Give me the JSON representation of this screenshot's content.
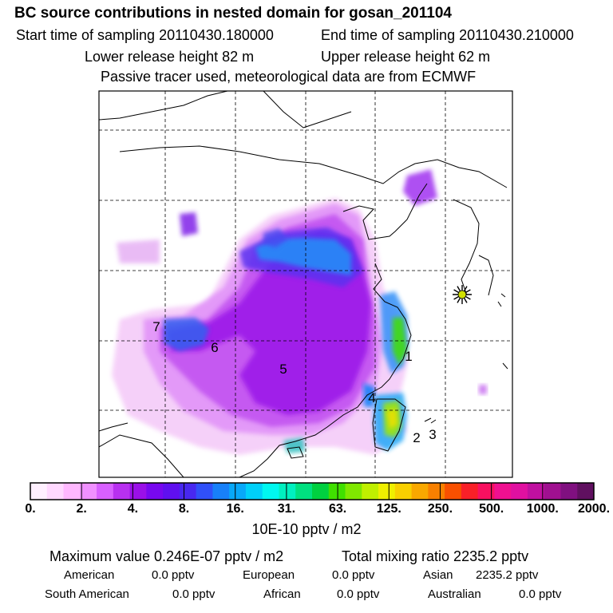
{
  "header": {
    "title": "BC  source contributions in nested domain for gosan_201104",
    "start": "Start time of sampling 20110430.180000",
    "end": "End time of sampling 20110430.210000",
    "lower": "Lower release height   82 m",
    "upper": "Upper release height   62 m",
    "note": "Passive tracer used, meteorological data are from ECMWF"
  },
  "chart_data": {
    "type": "heatmap",
    "region_labels": [
      "1",
      "2",
      "3",
      "4",
      "5",
      "6",
      "7"
    ],
    "colorbar": {
      "tick_labels": [
        "0.",
        "2.",
        "4.",
        "8.",
        "16.",
        "31.",
        "63.",
        "125.",
        "250.",
        "500.",
        "1000.",
        "2000."
      ],
      "colors": [
        "#fff0ff",
        "#ffd8ff",
        "#ffb8ff",
        "#f090ff",
        "#d860ff",
        "#b830f0",
        "#9a10e8",
        "#7808f0",
        "#6010f0",
        "#4828f0",
        "#3050f8",
        "#1880f8",
        "#08a8f8",
        "#00d0f8",
        "#00f8f0",
        "#00f0c0",
        "#00e080",
        "#00d040",
        "#40e000",
        "#80e800",
        "#c0f000",
        "#f0f000",
        "#f8d000",
        "#f8a800",
        "#f88000",
        "#f85000",
        "#f82028",
        "#f81060",
        "#f01090",
        "#e010a0",
        "#c010a0",
        "#a01090",
        "#801080",
        "#601060"
      ],
      "unit": "10E-10 pptv / m2"
    },
    "receptor_marker": "star"
  },
  "stats": {
    "max": "Maximum value  0.246E-07 pptv / m2",
    "total": "Total mixing ratio     2235.2 pptv",
    "american_label": "American",
    "american_value": "0.0 pptv",
    "european_label": "European",
    "european_value": "0.0 pptv",
    "asian_label": "Asian",
    "asian_value": "2235.2 pptv",
    "southam_label": "South American",
    "southam_value": "0.0 pptv",
    "african_label": "African",
    "african_value": "0.0 pptv",
    "australian_label": "Australian",
    "australian_value": "0.0 pptv"
  }
}
